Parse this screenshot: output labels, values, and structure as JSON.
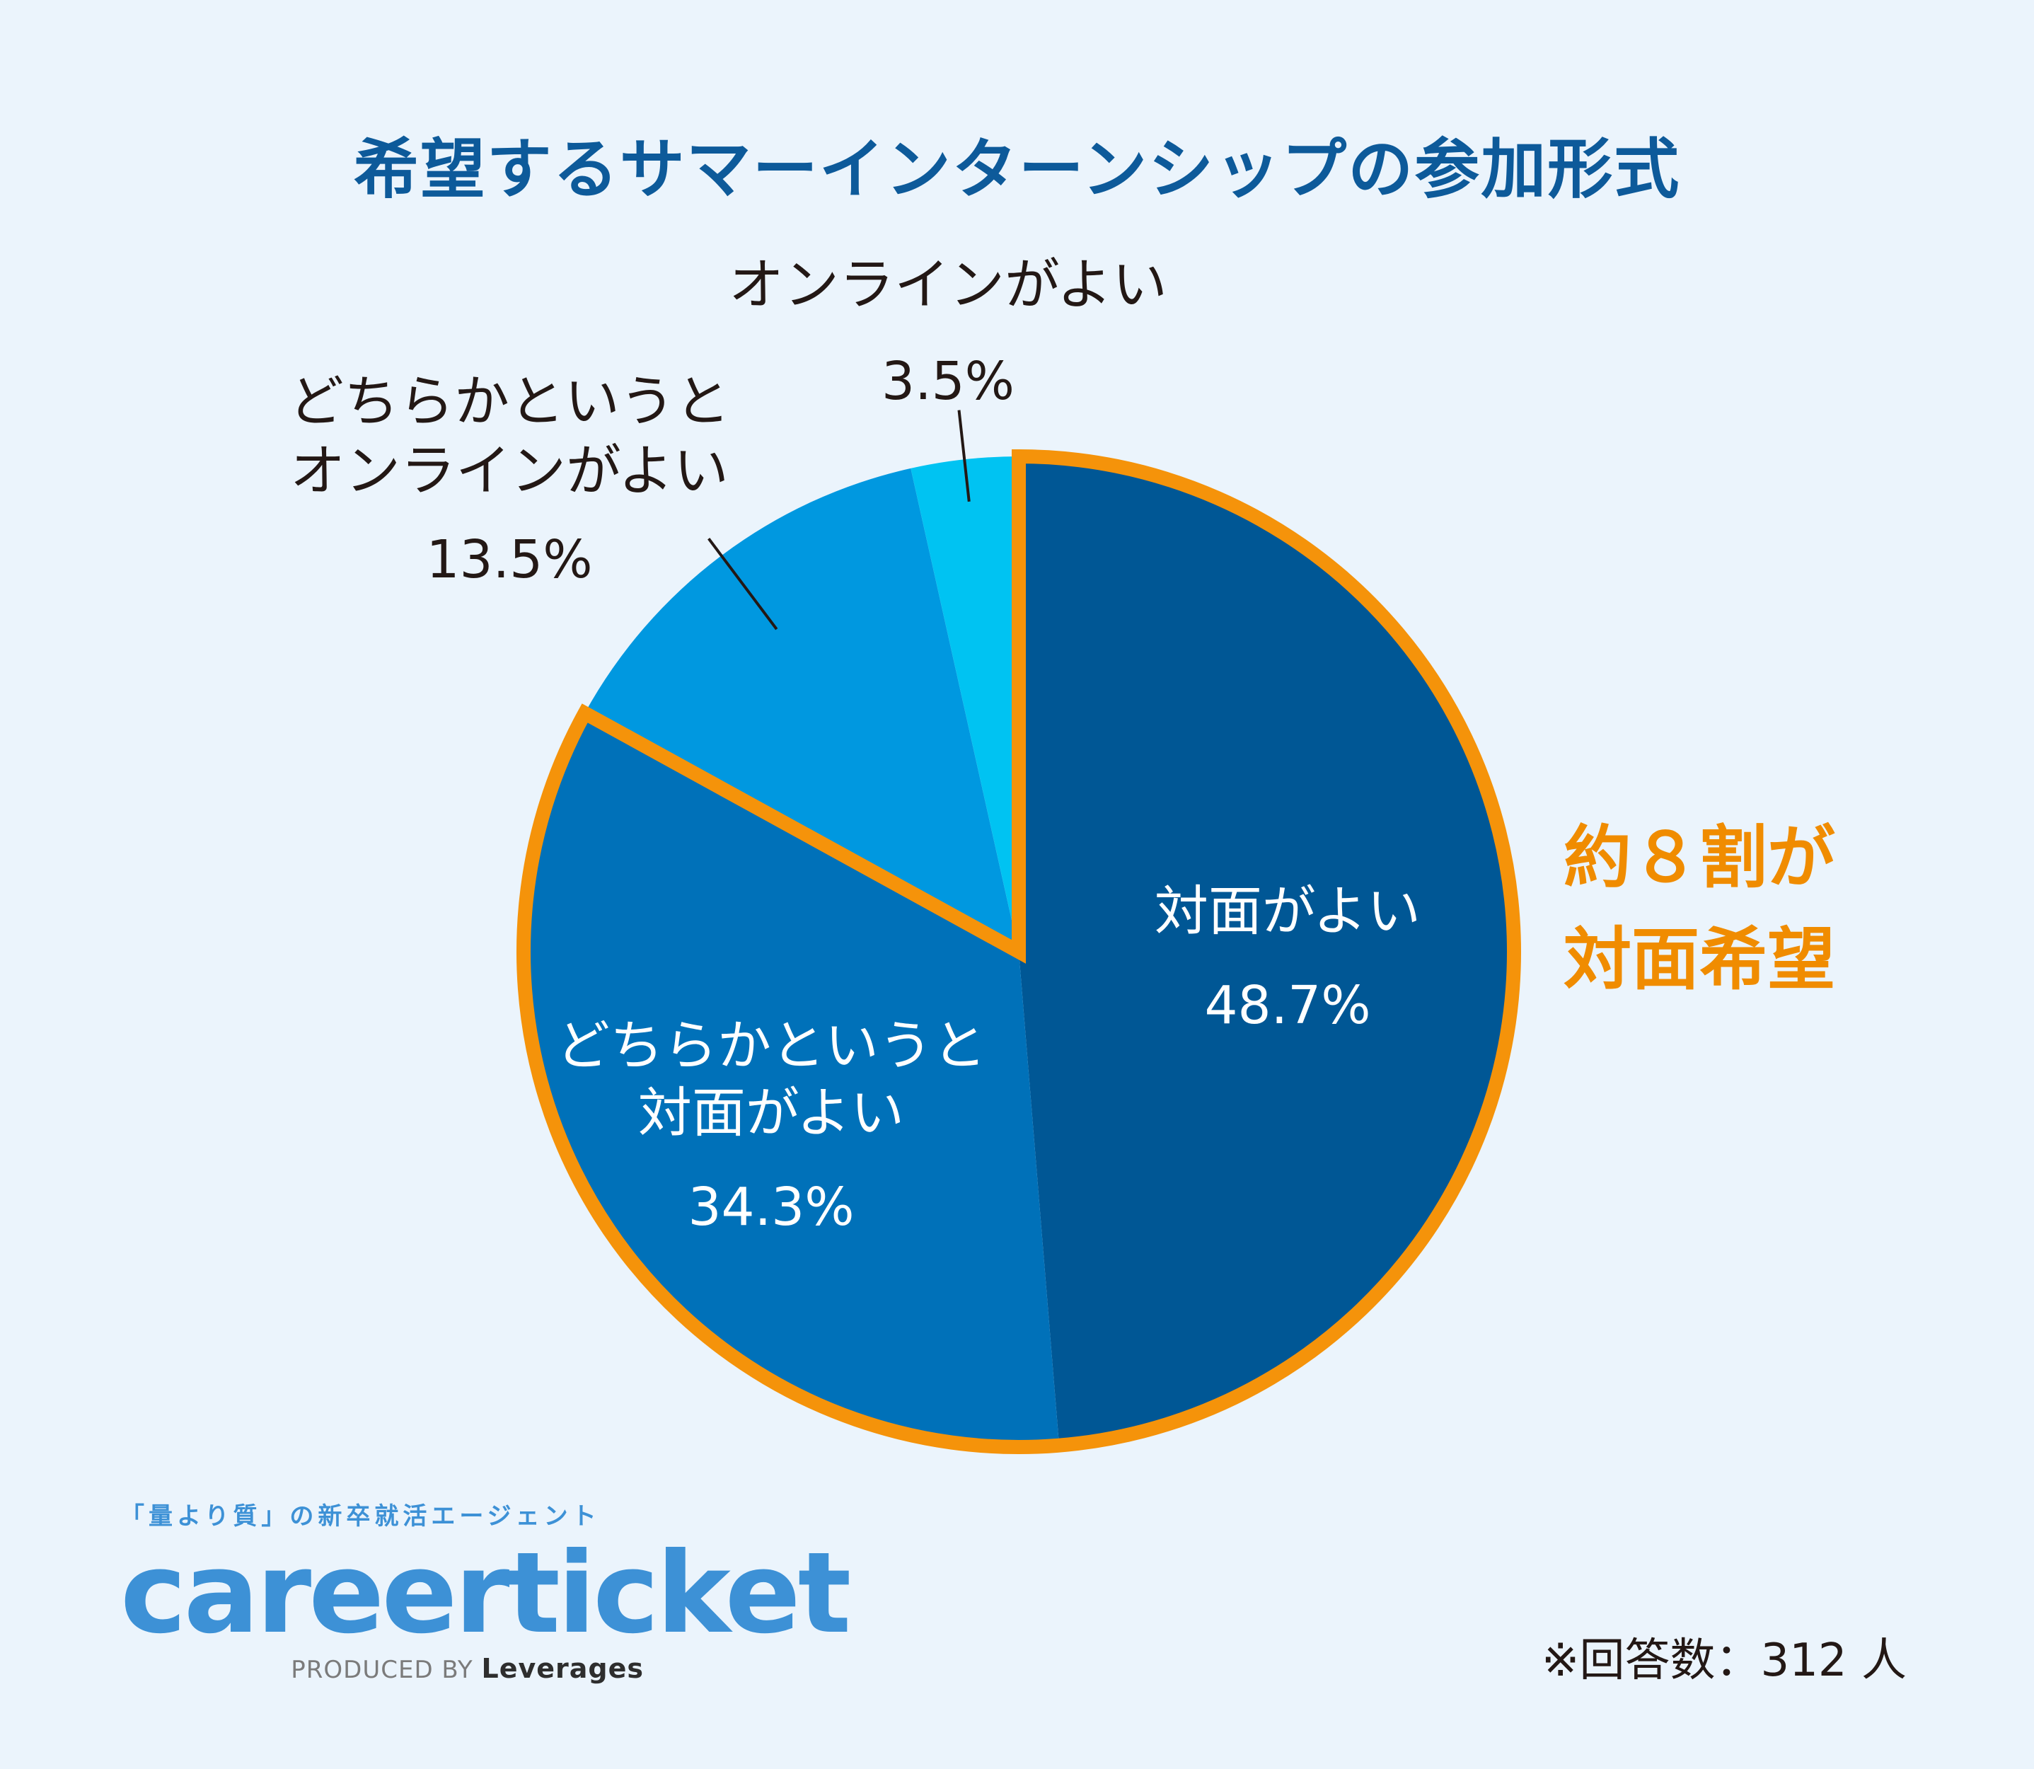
{
  "title": "希望するサマーインターンシップの参加形式",
  "chart_data": {
    "type": "pie",
    "title": "希望するサマーインターンシップの参加形式",
    "start": "12 o'clock, clockwise",
    "slices": [
      {
        "label": "対面がよい",
        "lines": [
          "対面がよい"
        ],
        "value": 48.7,
        "pct_text": "48.7",
        "color": "#005795",
        "highlight": true
      },
      {
        "label": "どちらかというと対面がよい",
        "lines": [
          "どちらかというと",
          "対面がよい"
        ],
        "value": 34.3,
        "pct_text": "34.3",
        "color": "#0071b9",
        "highlight": true
      },
      {
        "label": "どちらかというとオンラインがよい",
        "lines": [
          "どちらかというと",
          "オンラインがよい"
        ],
        "value": 13.5,
        "pct_text": "13.5",
        "color": "#0098e0",
        "highlight": false
      },
      {
        "label": "オンラインがよい",
        "lines": [
          "オンラインがよい"
        ],
        "value": 3.5,
        "pct_text": "3.5",
        "color": "#00c3f2",
        "highlight": false
      }
    ],
    "unit": "%",
    "highlight_color": "#f5930a"
  },
  "callout": {
    "line1": "約８割が",
    "line2": "対面希望"
  },
  "logo": {
    "tagline": "「量より質」の新卒就活エージェント",
    "brand": "careerticket",
    "produced_by": "PRODUCED BY",
    "company": "Leverages"
  },
  "note": "※回答数：312 人"
}
